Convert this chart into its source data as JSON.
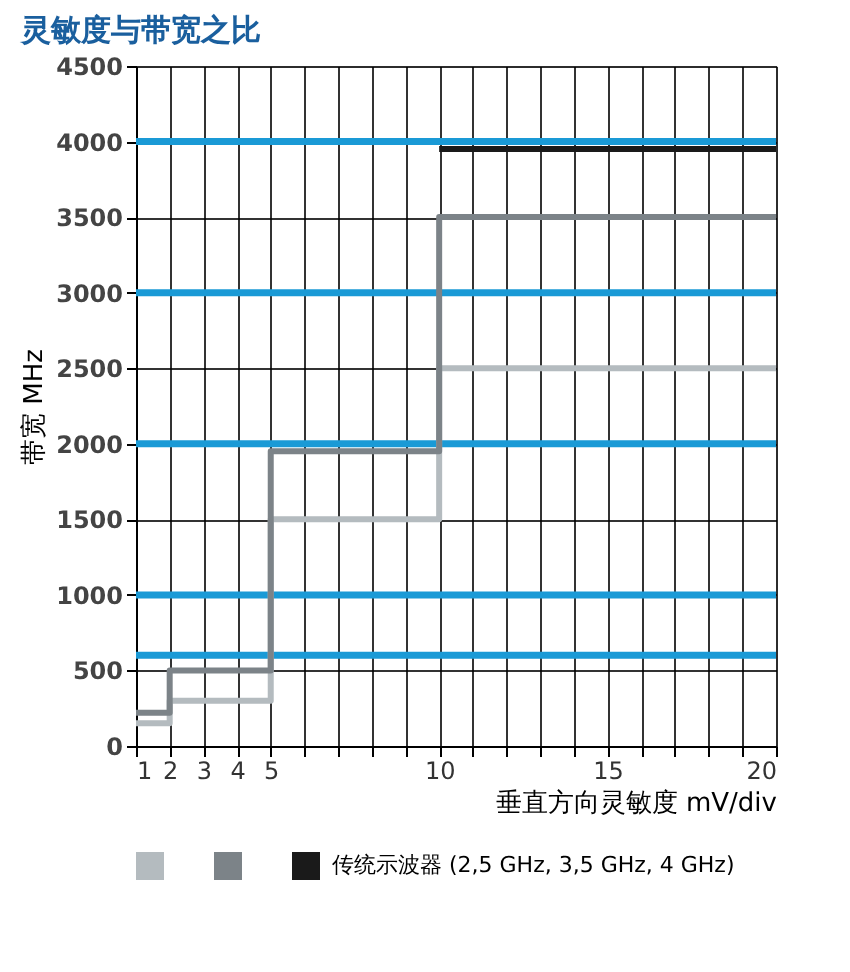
{
  "chart_data": {
    "type": "step",
    "title": "灵敏度与带宽之比",
    "xlabel": "垂直方向灵敏度 mV/div",
    "ylabel": "带宽 MHz",
    "legend": "bottom",
    "grid": true,
    "xlim": [
      1,
      20
    ],
    "ylim": [
      0,
      4500
    ],
    "xticks": [
      1,
      2,
      3,
      4,
      5,
      {
        "value": 6,
        "label": null
      },
      {
        "value": 7,
        "label": null
      },
      {
        "value": 8,
        "label": null
      },
      {
        "value": 9,
        "label": null
      },
      10,
      {
        "value": 11,
        "label": null
      },
      {
        "value": 12,
        "label": null
      },
      {
        "value": 13,
        "label": null
      },
      {
        "value": 14,
        "label": null
      },
      15,
      {
        "value": 16,
        "label": null
      },
      {
        "value": 17,
        "label": null
      },
      {
        "value": 18,
        "label": null
      },
      {
        "value": 19,
        "label": null
      },
      20
    ],
    "yticks": [
      0,
      500,
      1000,
      1500,
      2000,
      2500,
      3000,
      3500,
      4000,
      4500
    ],
    "series": [
      {
        "type": "line",
        "color": "#1a9ad6",
        "x": [
          1,
          20
        ],
        "values": [
          600,
          600
        ]
      },
      {
        "type": "line",
        "color": "#1a9ad6",
        "x": [
          1,
          20
        ],
        "values": [
          1000,
          1000
        ]
      },
      {
        "type": "line",
        "color": "#1a9ad6",
        "x": [
          1,
          20
        ],
        "values": [
          2000,
          2000
        ]
      },
      {
        "type": "line",
        "color": "#1a9ad6",
        "x": [
          1,
          20
        ],
        "values": [
          3000,
          3000
        ]
      },
      {
        "type": "line",
        "color": "#1a9ad6",
        "x": [
          1,
          20
        ],
        "values": [
          4000,
          4000
        ]
      },
      {
        "type": "step",
        "color": "#b4bbbf",
        "x": [
          1,
          2,
          5,
          10,
          20
        ],
        "values": [
          150,
          300,
          1500,
          2500,
          2500
        ]
      },
      {
        "type": "step",
        "color": "#7c8388",
        "x": [
          1,
          2,
          5,
          10,
          20
        ],
        "values": [
          220,
          500,
          1950,
          3500,
          3500
        ]
      },
      {
        "type": "step",
        "name": "传统示波器 (2,5 GHz, 3,5 GHz, 4 GHz)",
        "color": "#1a1a1a",
        "x": [
          10,
          20
        ],
        "values": [
          3950,
          3950
        ]
      }
    ]
  }
}
